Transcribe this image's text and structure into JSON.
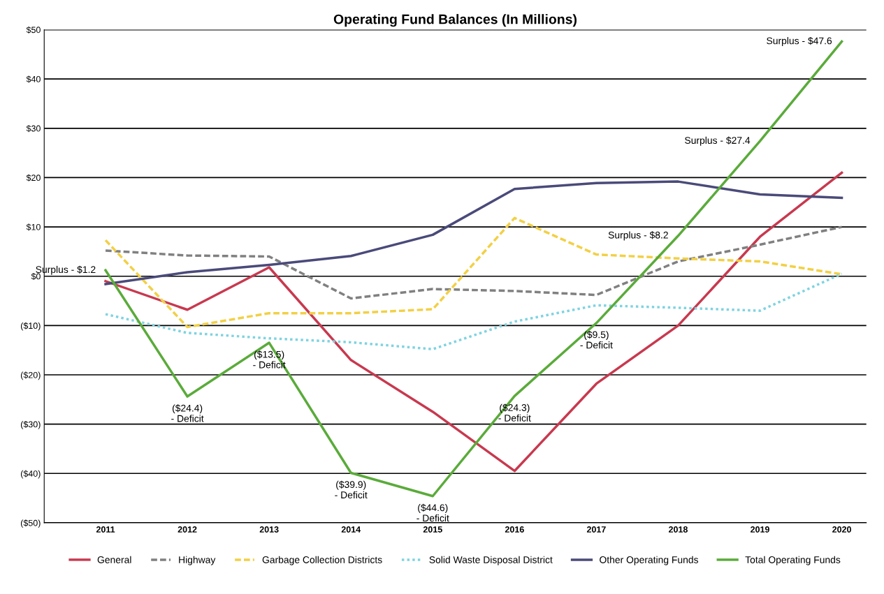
{
  "chart_data": {
    "type": "line",
    "title": "Operating Fund Balances (In Millions)",
    "categories": [
      "2011",
      "2012",
      "2013",
      "2014",
      "2015",
      "2016",
      "2017",
      "2018",
      "2019",
      "2020"
    ],
    "series": [
      {
        "name": "General",
        "color": "#c8394f",
        "line_style": "solid",
        "values": [
          -1,
          -6.8,
          1.8,
          -17,
          -27.5,
          -39.5,
          -21.8,
          -10,
          8,
          21
        ]
      },
      {
        "name": "Highway",
        "color": "#808080",
        "line_style": "dashed",
        "values": [
          5.2,
          4.2,
          4,
          -4.5,
          -2.6,
          -3,
          -3.8,
          3,
          6.4,
          10
        ]
      },
      {
        "name": "Garbage Collection Districts",
        "color": "#f2d045",
        "line_style": "dashed",
        "values": [
          7.3,
          -10.3,
          -7.5,
          -7.5,
          -6.7,
          11.8,
          4.4,
          3.6,
          3,
          0.4
        ]
      },
      {
        "name": "Solid Waste Disposal District",
        "color": "#7fd3e0",
        "line_style": "dotted",
        "values": [
          -7.7,
          -11.5,
          -12.6,
          -13.4,
          -14.8,
          -9.2,
          -5.9,
          -6.4,
          -7,
          0.5
        ]
      },
      {
        "name": "Other Operating Funds",
        "color": "#4a4a7a",
        "line_style": "solid",
        "values": [
          -1.6,
          0.8,
          2.3,
          4.1,
          8.4,
          17.7,
          18.9,
          19.2,
          16.6,
          15.9
        ]
      },
      {
        "name": "Total Operating Funds",
        "color": "#5aab3a",
        "line_style": "solid",
        "values": [
          1.2,
          -24.4,
          -13.5,
          -39.9,
          -44.6,
          -24.3,
          -9.5,
          8.2,
          27.4,
          47.6
        ]
      }
    ],
    "ylim": [
      -50,
      50
    ],
    "yticks": [
      {
        "value": -50,
        "label": "($50)"
      },
      {
        "value": -40,
        "label": "($40)"
      },
      {
        "value": -30,
        "label": "($30)"
      },
      {
        "value": -20,
        "label": "($20)"
      },
      {
        "value": -10,
        "label": "($10)"
      },
      {
        "value": 0,
        "label": "$0"
      },
      {
        "value": 10,
        "label": "$10"
      },
      {
        "value": 20,
        "label": "$20"
      },
      {
        "value": 30,
        "label": "$30"
      },
      {
        "value": 40,
        "label": "$40"
      },
      {
        "value": 50,
        "label": "$50"
      }
    ],
    "grid": "y",
    "legend": "bottom",
    "marker": "none",
    "annotations": [
      {
        "text": "Surplus - $1.2",
        "x": "2011",
        "y": 1.2
      },
      {
        "text": "($24.4)\n- Deficit",
        "x": "2012",
        "y": -24.4
      },
      {
        "text": "($13.5)\n- Deficit",
        "x": "2013",
        "y": -13.5
      },
      {
        "text": "($39.9)\n- Deficit",
        "x": "2014",
        "y": -39.9
      },
      {
        "text": "($44.6)\n- Deficit",
        "x": "2015",
        "y": -44.6
      },
      {
        "text": "($24.3)\n- Deficit",
        "x": "2016",
        "y": -24.3
      },
      {
        "text": "($9.5)\n- Deficit",
        "x": "2017",
        "y": -9.5
      },
      {
        "text": "Surplus - $8.2",
        "x": "2018",
        "y": 8.2
      },
      {
        "text": "Surplus - $27.4",
        "x": "2019",
        "y": 27.4
      },
      {
        "text": "Surplus - $47.6",
        "x": "2020",
        "y": 47.6
      }
    ]
  }
}
